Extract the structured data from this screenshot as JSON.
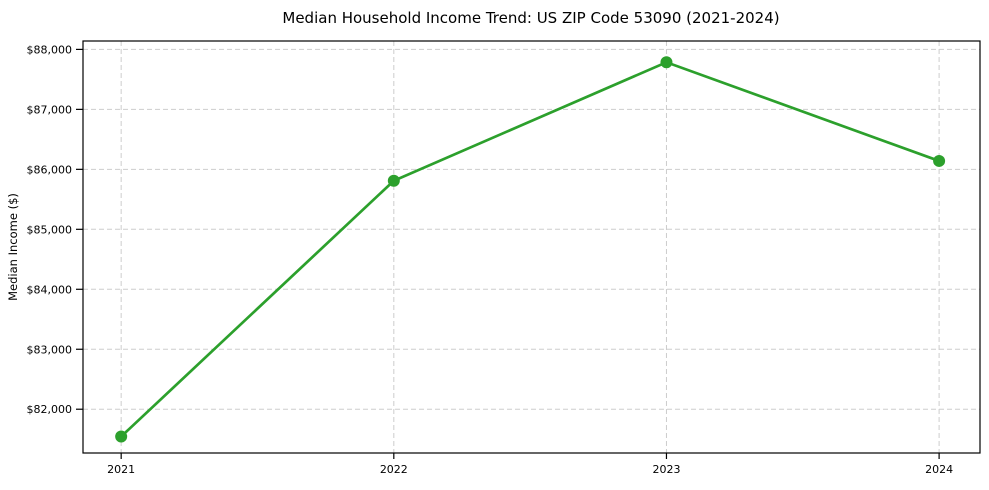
{
  "chart_data": {
    "type": "line",
    "title": "Median Household Income Trend: US ZIP Code 53090 (2021-2024)",
    "xlabel": "",
    "ylabel": "Median Income ($)",
    "x": [
      2021,
      2022,
      2023,
      2024
    ],
    "series": [
      {
        "values": [
          81545,
          85810,
          87785,
          86140
        ],
        "color": "#2ca02c",
        "marker": "circle"
      }
    ],
    "xticks": {
      "values": [
        2021,
        2022,
        2023,
        2024
      ],
      "labels": [
        "2021",
        "2022",
        "2023",
        "2024"
      ]
    },
    "yticks": {
      "values": [
        82000,
        83000,
        84000,
        85000,
        86000,
        87000,
        88000
      ],
      "labels": [
        "$82,000",
        "$83,000",
        "$84,000",
        "$85,000",
        "$86,000",
        "$87,000",
        "$88,000"
      ]
    },
    "xlim": [
      2020.86,
      2024.15
    ],
    "ylim": [
      81270,
      88140
    ],
    "grid": {
      "visible": true,
      "style": "dashed",
      "color": "#cdcdcd"
    },
    "legend": {
      "visible": false
    },
    "colors": {
      "line": "#2ca02c",
      "spine": "#000000",
      "text": "#000000"
    }
  }
}
